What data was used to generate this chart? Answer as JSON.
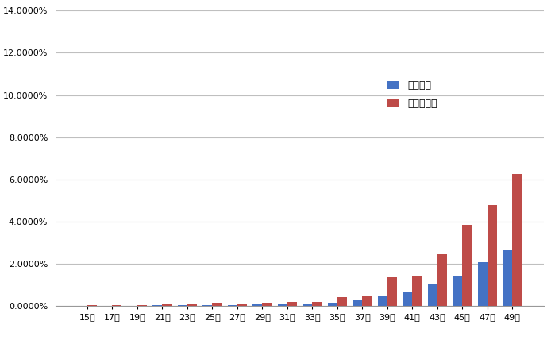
{
  "categories": [
    "15歳",
    "17歳",
    "19歳",
    "21歳",
    "23歳",
    "25歳",
    "27歳",
    "29歳",
    "31歳",
    "33歳",
    "35歳",
    "37歳",
    "39歳",
    "41歳",
    "43歳",
    "45歳",
    "47歳",
    "49歳"
  ],
  "down_syndrome_pct": [
    0.00028,
    0.00028,
    0.00033,
    0.00049,
    0.00057,
    0.00065,
    0.00065,
    0.00077,
    0.00083,
    0.0011,
    0.00156,
    0.0028,
    0.0045,
    0.0068,
    0.0105,
    0.0143,
    0.0207,
    0.0264
  ],
  "chrom_syndrome_pct": [
    0.0004,
    0.0004,
    0.00052,
    0.001,
    0.0013,
    0.0016,
    0.0014,
    0.0018,
    0.002,
    0.0021,
    0.0044,
    0.0048,
    0.0138,
    0.0145,
    0.0247,
    0.0385,
    0.0478,
    0.0625
  ],
  "bar_color_down": "#4472C4",
  "bar_color_chrom": "#BE4B48",
  "legend_down": "ダウン症",
  "legend_chrom": "染色体異常",
  "ylim_max": 0.14,
  "ytick_values": [
    0.0,
    0.02,
    0.04,
    0.06,
    0.08,
    0.1,
    0.12,
    0.14
  ],
  "background_color": "#FFFFFF",
  "grid_color": "#BFBFBF",
  "figwidth": 6.99,
  "figheight": 4.38
}
